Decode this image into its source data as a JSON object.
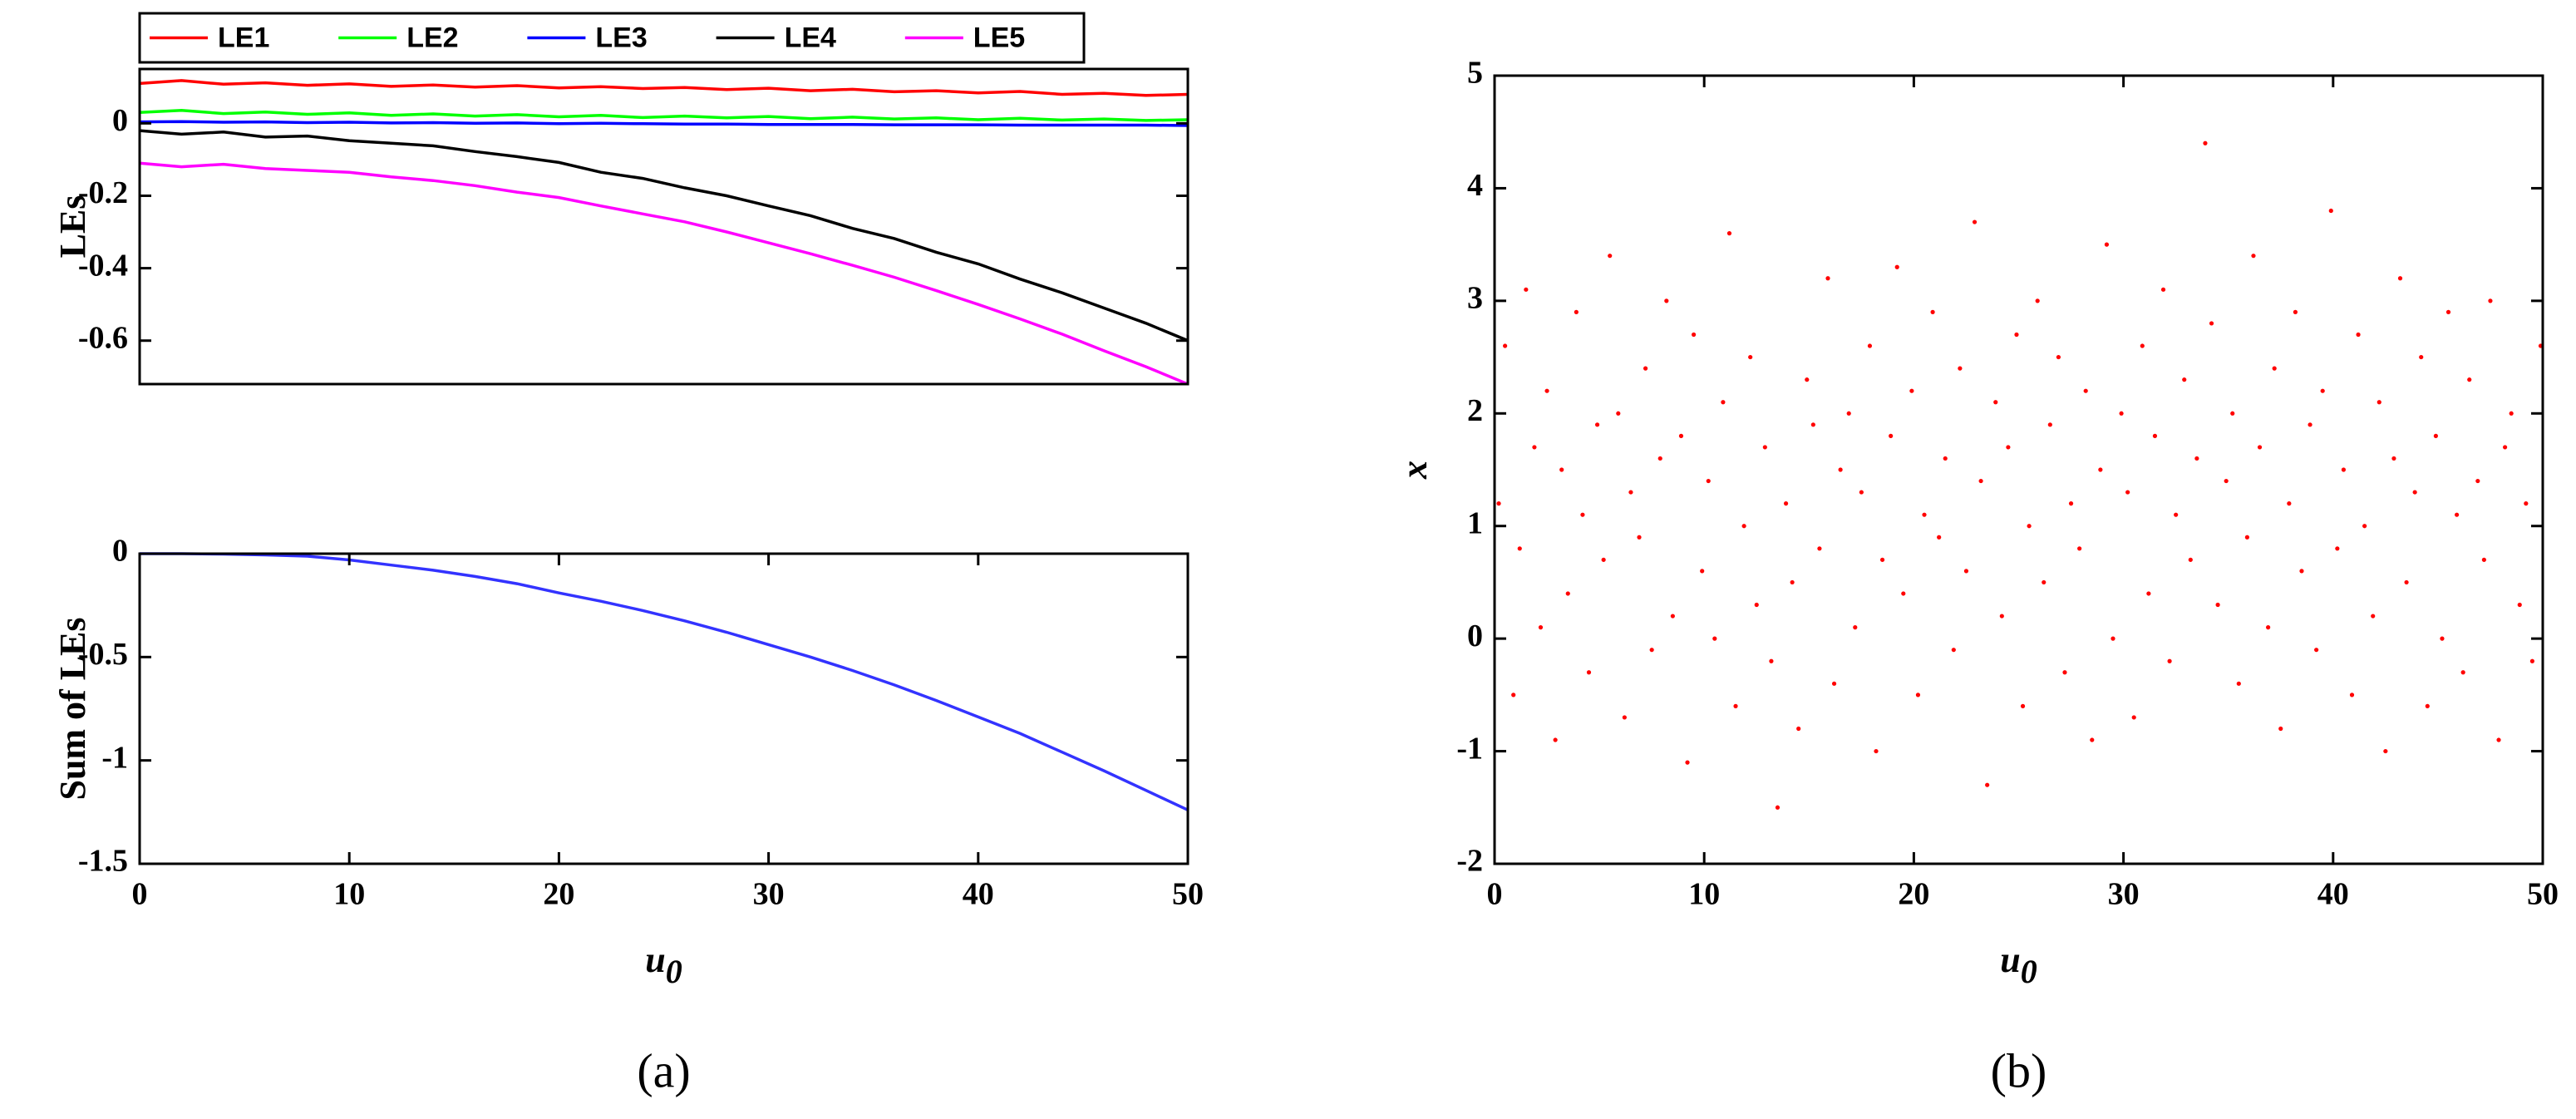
{
  "chart_data": [
    {
      "type": "line",
      "ylabel": "LEs",
      "legend": "north-outside",
      "x": [
        0,
        2,
        4,
        6,
        8,
        10,
        12,
        14,
        16,
        18,
        20,
        22,
        24,
        26,
        28,
        30,
        32,
        34,
        36,
        38,
        40,
        42,
        44,
        46,
        48,
        50
      ],
      "xlim": [
        0,
        50
      ],
      "ylim": [
        -0.72,
        0.15
      ],
      "yticks": [
        -0.6,
        -0.4,
        -0.2,
        0
      ],
      "series": [
        {
          "name": "LE1",
          "color": "#ff0000",
          "values": [
            0.11,
            0.118,
            0.108,
            0.112,
            0.105,
            0.109,
            0.102,
            0.106,
            0.1,
            0.104,
            0.098,
            0.101,
            0.096,
            0.099,
            0.093,
            0.097,
            0.09,
            0.094,
            0.087,
            0.09,
            0.084,
            0.088,
            0.08,
            0.083,
            0.077,
            0.08
          ]
        },
        {
          "name": "LE2",
          "color": "#00ff00",
          "values": [
            0.03,
            0.036,
            0.027,
            0.031,
            0.025,
            0.029,
            0.022,
            0.026,
            0.02,
            0.024,
            0.018,
            0.022,
            0.016,
            0.02,
            0.015,
            0.019,
            0.013,
            0.017,
            0.012,
            0.015,
            0.01,
            0.014,
            0.009,
            0.012,
            0.008,
            0.01
          ]
        },
        {
          "name": "LE3",
          "color": "#0000ff",
          "values": [
            0.004,
            0.005,
            0.003,
            0.004,
            0.002,
            0.003,
            0.001,
            0.002,
            0,
            0.001,
            -0.001,
            0,
            -0.001,
            -0.002,
            -0.002,
            -0.003,
            -0.003,
            -0.003,
            -0.004,
            -0.004,
            -0.004,
            -0.005,
            -0.005,
            -0.005,
            -0.005,
            -0.006
          ]
        },
        {
          "name": "LE4",
          "color": "#000000",
          "values": [
            -0.02,
            -0.03,
            -0.024,
            -0.038,
            -0.035,
            -0.048,
            -0.055,
            -0.062,
            -0.078,
            -0.092,
            -0.108,
            -0.135,
            -0.152,
            -0.178,
            -0.2,
            -0.228,
            -0.255,
            -0.29,
            -0.318,
            -0.356,
            -0.388,
            -0.43,
            -0.468,
            -0.51,
            -0.552,
            -0.6
          ]
        },
        {
          "name": "LE5",
          "color": "#ff00ff",
          "values": [
            -0.11,
            -0.12,
            -0.113,
            -0.125,
            -0.13,
            -0.135,
            -0.148,
            -0.158,
            -0.172,
            -0.19,
            -0.205,
            -0.228,
            -0.25,
            -0.272,
            -0.3,
            -0.33,
            -0.36,
            -0.392,
            -0.425,
            -0.462,
            -0.5,
            -0.54,
            -0.582,
            -0.628,
            -0.672,
            -0.72
          ]
        }
      ]
    },
    {
      "type": "line",
      "ylabel": "Sum of LEs",
      "xlabel": "u",
      "xlabel_subscript": "0",
      "panel_label": "(a)",
      "x": [
        0,
        2,
        4,
        6,
        8,
        10,
        12,
        14,
        16,
        18,
        20,
        22,
        24,
        26,
        28,
        30,
        32,
        34,
        36,
        38,
        40,
        42,
        44,
        46,
        48,
        50
      ],
      "xlim": [
        0,
        50
      ],
      "xticks": [
        0,
        10,
        20,
        30,
        40,
        50
      ],
      "ylim": [
        -1.5,
        0
      ],
      "yticks": [
        -1.5,
        -1,
        -0.5,
        0
      ],
      "series": [
        {
          "color": "#3333ff",
          "values": [
            0,
            0,
            -0.002,
            -0.006,
            -0.012,
            -0.03,
            -0.055,
            -0.08,
            -0.11,
            -0.145,
            -0.19,
            -0.23,
            -0.275,
            -0.325,
            -0.38,
            -0.44,
            -0.5,
            -0.565,
            -0.635,
            -0.71,
            -0.79,
            -0.87,
            -0.96,
            -1.05,
            -1.145,
            -1.24
          ]
        }
      ]
    },
    {
      "type": "scatter",
      "ylabel": "x",
      "xlabel": "u",
      "xlabel_subscript": "0",
      "panel_label": "(b)",
      "color": "#ff0000",
      "xlim": [
        0,
        50
      ],
      "xticks": [
        0,
        10,
        20,
        30,
        40,
        50
      ],
      "ylim": [
        -2,
        5
      ],
      "yticks": [
        -2,
        -1,
        0,
        1,
        2,
        3,
        4,
        5
      ],
      "x": [
        0.2,
        0.5,
        0.9,
        1.2,
        1.5,
        1.9,
        2.2,
        2.5,
        2.9,
        3.2,
        3.5,
        3.9,
        4.2,
        4.5,
        4.9,
        5.2,
        5.5,
        5.9,
        6.2,
        6.5,
        6.9,
        7.2,
        7.5,
        7.9,
        8.2,
        8.5,
        8.9,
        9.2,
        9.5,
        9.9,
        10.2,
        10.5,
        10.9,
        11.2,
        11.5,
        11.9,
        12.2,
        12.5,
        12.9,
        13.2,
        13.5,
        13.9,
        14.2,
        14.5,
        14.9,
        15.2,
        15.5,
        15.9,
        16.2,
        16.5,
        16.9,
        17.2,
        17.5,
        17.9,
        18.2,
        18.5,
        18.9,
        19.2,
        19.5,
        19.9,
        20.2,
        20.5,
        20.9,
        21.2,
        21.5,
        21.9,
        22.2,
        22.5,
        22.9,
        23.2,
        23.5,
        23.9,
        24.2,
        24.5,
        24.9,
        25.2,
        25.5,
        25.9,
        26.2,
        26.5,
        26.9,
        27.2,
        27.5,
        27.9,
        28.2,
        28.5,
        28.9,
        29.2,
        29.5,
        29.9,
        30.2,
        30.5,
        30.9,
        31.2,
        31.5,
        31.9,
        32.2,
        32.5,
        32.9,
        33.2,
        33.5,
        33.9,
        34.2,
        34.5,
        34.9,
        35.2,
        35.5,
        35.9,
        36.2,
        36.5,
        36.9,
        37.2,
        37.5,
        37.9,
        38.2,
        38.5,
        38.9,
        39.2,
        39.5,
        39.9,
        40.2,
        40.5,
        40.9,
        41.2,
        41.5,
        41.9,
        42.2,
        42.5,
        42.9,
        43.2,
        43.5,
        43.9,
        44.2,
        44.5,
        44.9,
        45.2,
        45.5,
        45.9,
        46.2,
        46.5,
        46.9,
        47.2,
        47.5,
        47.9,
        48.2,
        48.5,
        48.9,
        49.2,
        49.5,
        49.9
      ],
      "values": [
        1.2,
        2.6,
        -0.5,
        0.8,
        3.1,
        1.7,
        0.1,
        2.2,
        -0.9,
        1.5,
        0.4,
        2.9,
        1.1,
        -0.3,
        1.9,
        0.7,
        3.4,
        2.0,
        -0.7,
        1.3,
        0.9,
        2.4,
        -0.1,
        1.6,
        3.0,
        0.2,
        1.8,
        -1.1,
        2.7,
        0.6,
        1.4,
        0.0,
        2.1,
        3.6,
        -0.6,
        1.0,
        2.5,
        0.3,
        1.7,
        -0.2,
        -1.5,
        1.2,
        0.5,
        -0.8,
        2.3,
        1.9,
        0.8,
        3.2,
        -0.4,
        1.5,
        2.0,
        0.1,
        1.3,
        2.6,
        -1.0,
        0.7,
        1.8,
        3.3,
        0.4,
        2.2,
        -0.5,
        1.1,
        2.9,
        0.9,
        1.6,
        -0.1,
        2.4,
        0.6,
        3.7,
        1.4,
        -1.3,
        2.1,
        0.2,
        1.7,
        2.7,
        -0.6,
        1.0,
        3.0,
        0.5,
        1.9,
        2.5,
        -0.3,
        1.2,
        0.8,
        2.2,
        -0.9,
        1.5,
        3.5,
        0.0,
        2.0,
        1.3,
        -0.7,
        2.6,
        0.4,
        1.8,
        3.1,
        -0.2,
        1.1,
        2.3,
        0.7,
        1.6,
        4.4,
        2.8,
        0.3,
        1.4,
        2.0,
        -0.4,
        0.9,
        3.4,
        1.7,
        0.1,
        2.4,
        -0.8,
        1.2,
        2.9,
        0.6,
        1.9,
        -0.1,
        2.2,
        3.8,
        0.8,
        1.5,
        -0.5,
        2.7,
        1.0,
        0.2,
        2.1,
        -1.0,
        1.6,
        3.2,
        0.5,
        1.3,
        2.5,
        -0.6,
        1.8,
        0.0,
        2.9,
        1.1,
        -0.3,
        2.3,
        1.4,
        0.7,
        3.0,
        -0.9,
        1.7,
        2.0,
        0.3,
        1.2,
        -0.2,
        2.6
      ]
    }
  ]
}
